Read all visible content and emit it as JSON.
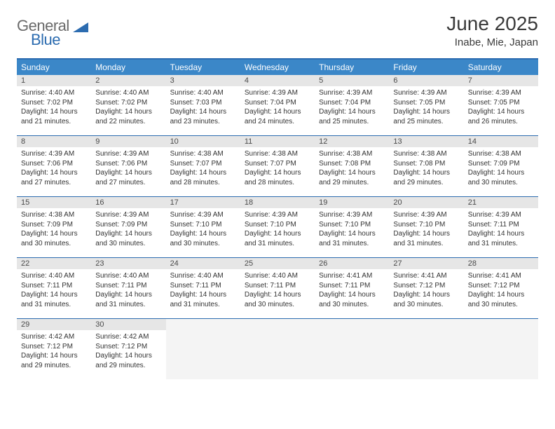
{
  "colors": {
    "header_border": "#2c6cb0",
    "weekday_bg": "#3b87c8",
    "weekday_fg": "#ffffff",
    "daynum_bg": "#e6e6e6",
    "text": "#333333",
    "logo_gray": "#6a6a6a",
    "logo_blue": "#2c6cb0",
    "empty_bg": "#f4f4f4"
  },
  "logo": {
    "part1": "General",
    "part2": "Blue"
  },
  "title": "June 2025",
  "location": "Inabe, Mie, Japan",
  "weekdays": [
    "Sunday",
    "Monday",
    "Tuesday",
    "Wednesday",
    "Thursday",
    "Friday",
    "Saturday"
  ],
  "days": [
    {
      "n": "1",
      "sr": "4:40 AM",
      "ss": "7:02 PM",
      "dl": "14 hours and 21 minutes."
    },
    {
      "n": "2",
      "sr": "4:40 AM",
      "ss": "7:02 PM",
      "dl": "14 hours and 22 minutes."
    },
    {
      "n": "3",
      "sr": "4:40 AM",
      "ss": "7:03 PM",
      "dl": "14 hours and 23 minutes."
    },
    {
      "n": "4",
      "sr": "4:39 AM",
      "ss": "7:04 PM",
      "dl": "14 hours and 24 minutes."
    },
    {
      "n": "5",
      "sr": "4:39 AM",
      "ss": "7:04 PM",
      "dl": "14 hours and 25 minutes."
    },
    {
      "n": "6",
      "sr": "4:39 AM",
      "ss": "7:05 PM",
      "dl": "14 hours and 25 minutes."
    },
    {
      "n": "7",
      "sr": "4:39 AM",
      "ss": "7:05 PM",
      "dl": "14 hours and 26 minutes."
    },
    {
      "n": "8",
      "sr": "4:39 AM",
      "ss": "7:06 PM",
      "dl": "14 hours and 27 minutes."
    },
    {
      "n": "9",
      "sr": "4:39 AM",
      "ss": "7:06 PM",
      "dl": "14 hours and 27 minutes."
    },
    {
      "n": "10",
      "sr": "4:38 AM",
      "ss": "7:07 PM",
      "dl": "14 hours and 28 minutes."
    },
    {
      "n": "11",
      "sr": "4:38 AM",
      "ss": "7:07 PM",
      "dl": "14 hours and 28 minutes."
    },
    {
      "n": "12",
      "sr": "4:38 AM",
      "ss": "7:08 PM",
      "dl": "14 hours and 29 minutes."
    },
    {
      "n": "13",
      "sr": "4:38 AM",
      "ss": "7:08 PM",
      "dl": "14 hours and 29 minutes."
    },
    {
      "n": "14",
      "sr": "4:38 AM",
      "ss": "7:09 PM",
      "dl": "14 hours and 30 minutes."
    },
    {
      "n": "15",
      "sr": "4:38 AM",
      "ss": "7:09 PM",
      "dl": "14 hours and 30 minutes."
    },
    {
      "n": "16",
      "sr": "4:39 AM",
      "ss": "7:09 PM",
      "dl": "14 hours and 30 minutes."
    },
    {
      "n": "17",
      "sr": "4:39 AM",
      "ss": "7:10 PM",
      "dl": "14 hours and 30 minutes."
    },
    {
      "n": "18",
      "sr": "4:39 AM",
      "ss": "7:10 PM",
      "dl": "14 hours and 31 minutes."
    },
    {
      "n": "19",
      "sr": "4:39 AM",
      "ss": "7:10 PM",
      "dl": "14 hours and 31 minutes."
    },
    {
      "n": "20",
      "sr": "4:39 AM",
      "ss": "7:10 PM",
      "dl": "14 hours and 31 minutes."
    },
    {
      "n": "21",
      "sr": "4:39 AM",
      "ss": "7:11 PM",
      "dl": "14 hours and 31 minutes."
    },
    {
      "n": "22",
      "sr": "4:40 AM",
      "ss": "7:11 PM",
      "dl": "14 hours and 31 minutes."
    },
    {
      "n": "23",
      "sr": "4:40 AM",
      "ss": "7:11 PM",
      "dl": "14 hours and 31 minutes."
    },
    {
      "n": "24",
      "sr": "4:40 AM",
      "ss": "7:11 PM",
      "dl": "14 hours and 31 minutes."
    },
    {
      "n": "25",
      "sr": "4:40 AM",
      "ss": "7:11 PM",
      "dl": "14 hours and 30 minutes."
    },
    {
      "n": "26",
      "sr": "4:41 AM",
      "ss": "7:11 PM",
      "dl": "14 hours and 30 minutes."
    },
    {
      "n": "27",
      "sr": "4:41 AM",
      "ss": "7:12 PM",
      "dl": "14 hours and 30 minutes."
    },
    {
      "n": "28",
      "sr": "4:41 AM",
      "ss": "7:12 PM",
      "dl": "14 hours and 30 minutes."
    },
    {
      "n": "29",
      "sr": "4:42 AM",
      "ss": "7:12 PM",
      "dl": "14 hours and 29 minutes."
    },
    {
      "n": "30",
      "sr": "4:42 AM",
      "ss": "7:12 PM",
      "dl": "14 hours and 29 minutes."
    }
  ],
  "labels": {
    "sunrise": "Sunrise:",
    "sunset": "Sunset:",
    "daylight": "Daylight:"
  }
}
